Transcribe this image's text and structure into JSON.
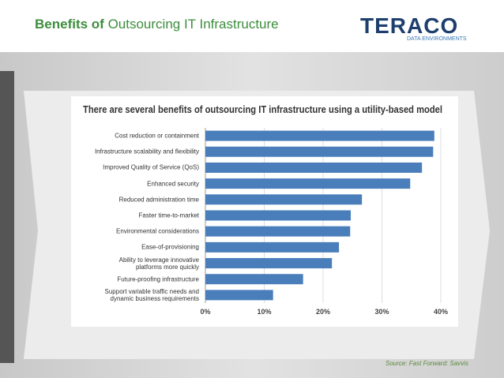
{
  "slide_title": {
    "bold": "Benefits of",
    "rest": "Outsourcing IT Infrastructure"
  },
  "logo": {
    "name": "TERACO",
    "tagline": "DATA ENVIRONMENTS"
  },
  "source": "Source: Fast Forward: Savvis",
  "chart_data": {
    "type": "bar",
    "orientation": "horizontal",
    "title": "There are several benefits of outsourcing IT infrastructure using a utility-based model",
    "categories": [
      "Cost reduction or containment",
      "Infrastructure scalability and flexibility",
      "Improved Quality of Service (QoS)",
      "Enhanced security",
      "Reduced administration time",
      "Faster time-to-market",
      "Environmental considerations",
      "Ease-of-provisioning",
      "Ability to leverage innovative\nplatforms more quickly",
      "Future-proofing infrastructure",
      "Support  variable traffic needs and\ndynamic business requirements"
    ],
    "values": [
      38.9,
      38.7,
      36.8,
      34.8,
      26.6,
      24.7,
      24.6,
      22.7,
      21.5,
      16.6,
      11.5
    ],
    "color": "#4a7ebb",
    "xlim": [
      0,
      40
    ],
    "xticks": [
      {
        "value": 0,
        "label": "0%"
      },
      {
        "value": 10,
        "label": "10%"
      },
      {
        "value": 20,
        "label": "20%"
      },
      {
        "value": 30,
        "label": "30%"
      },
      {
        "value": 40,
        "label": "40%"
      }
    ],
    "grid": true
  }
}
